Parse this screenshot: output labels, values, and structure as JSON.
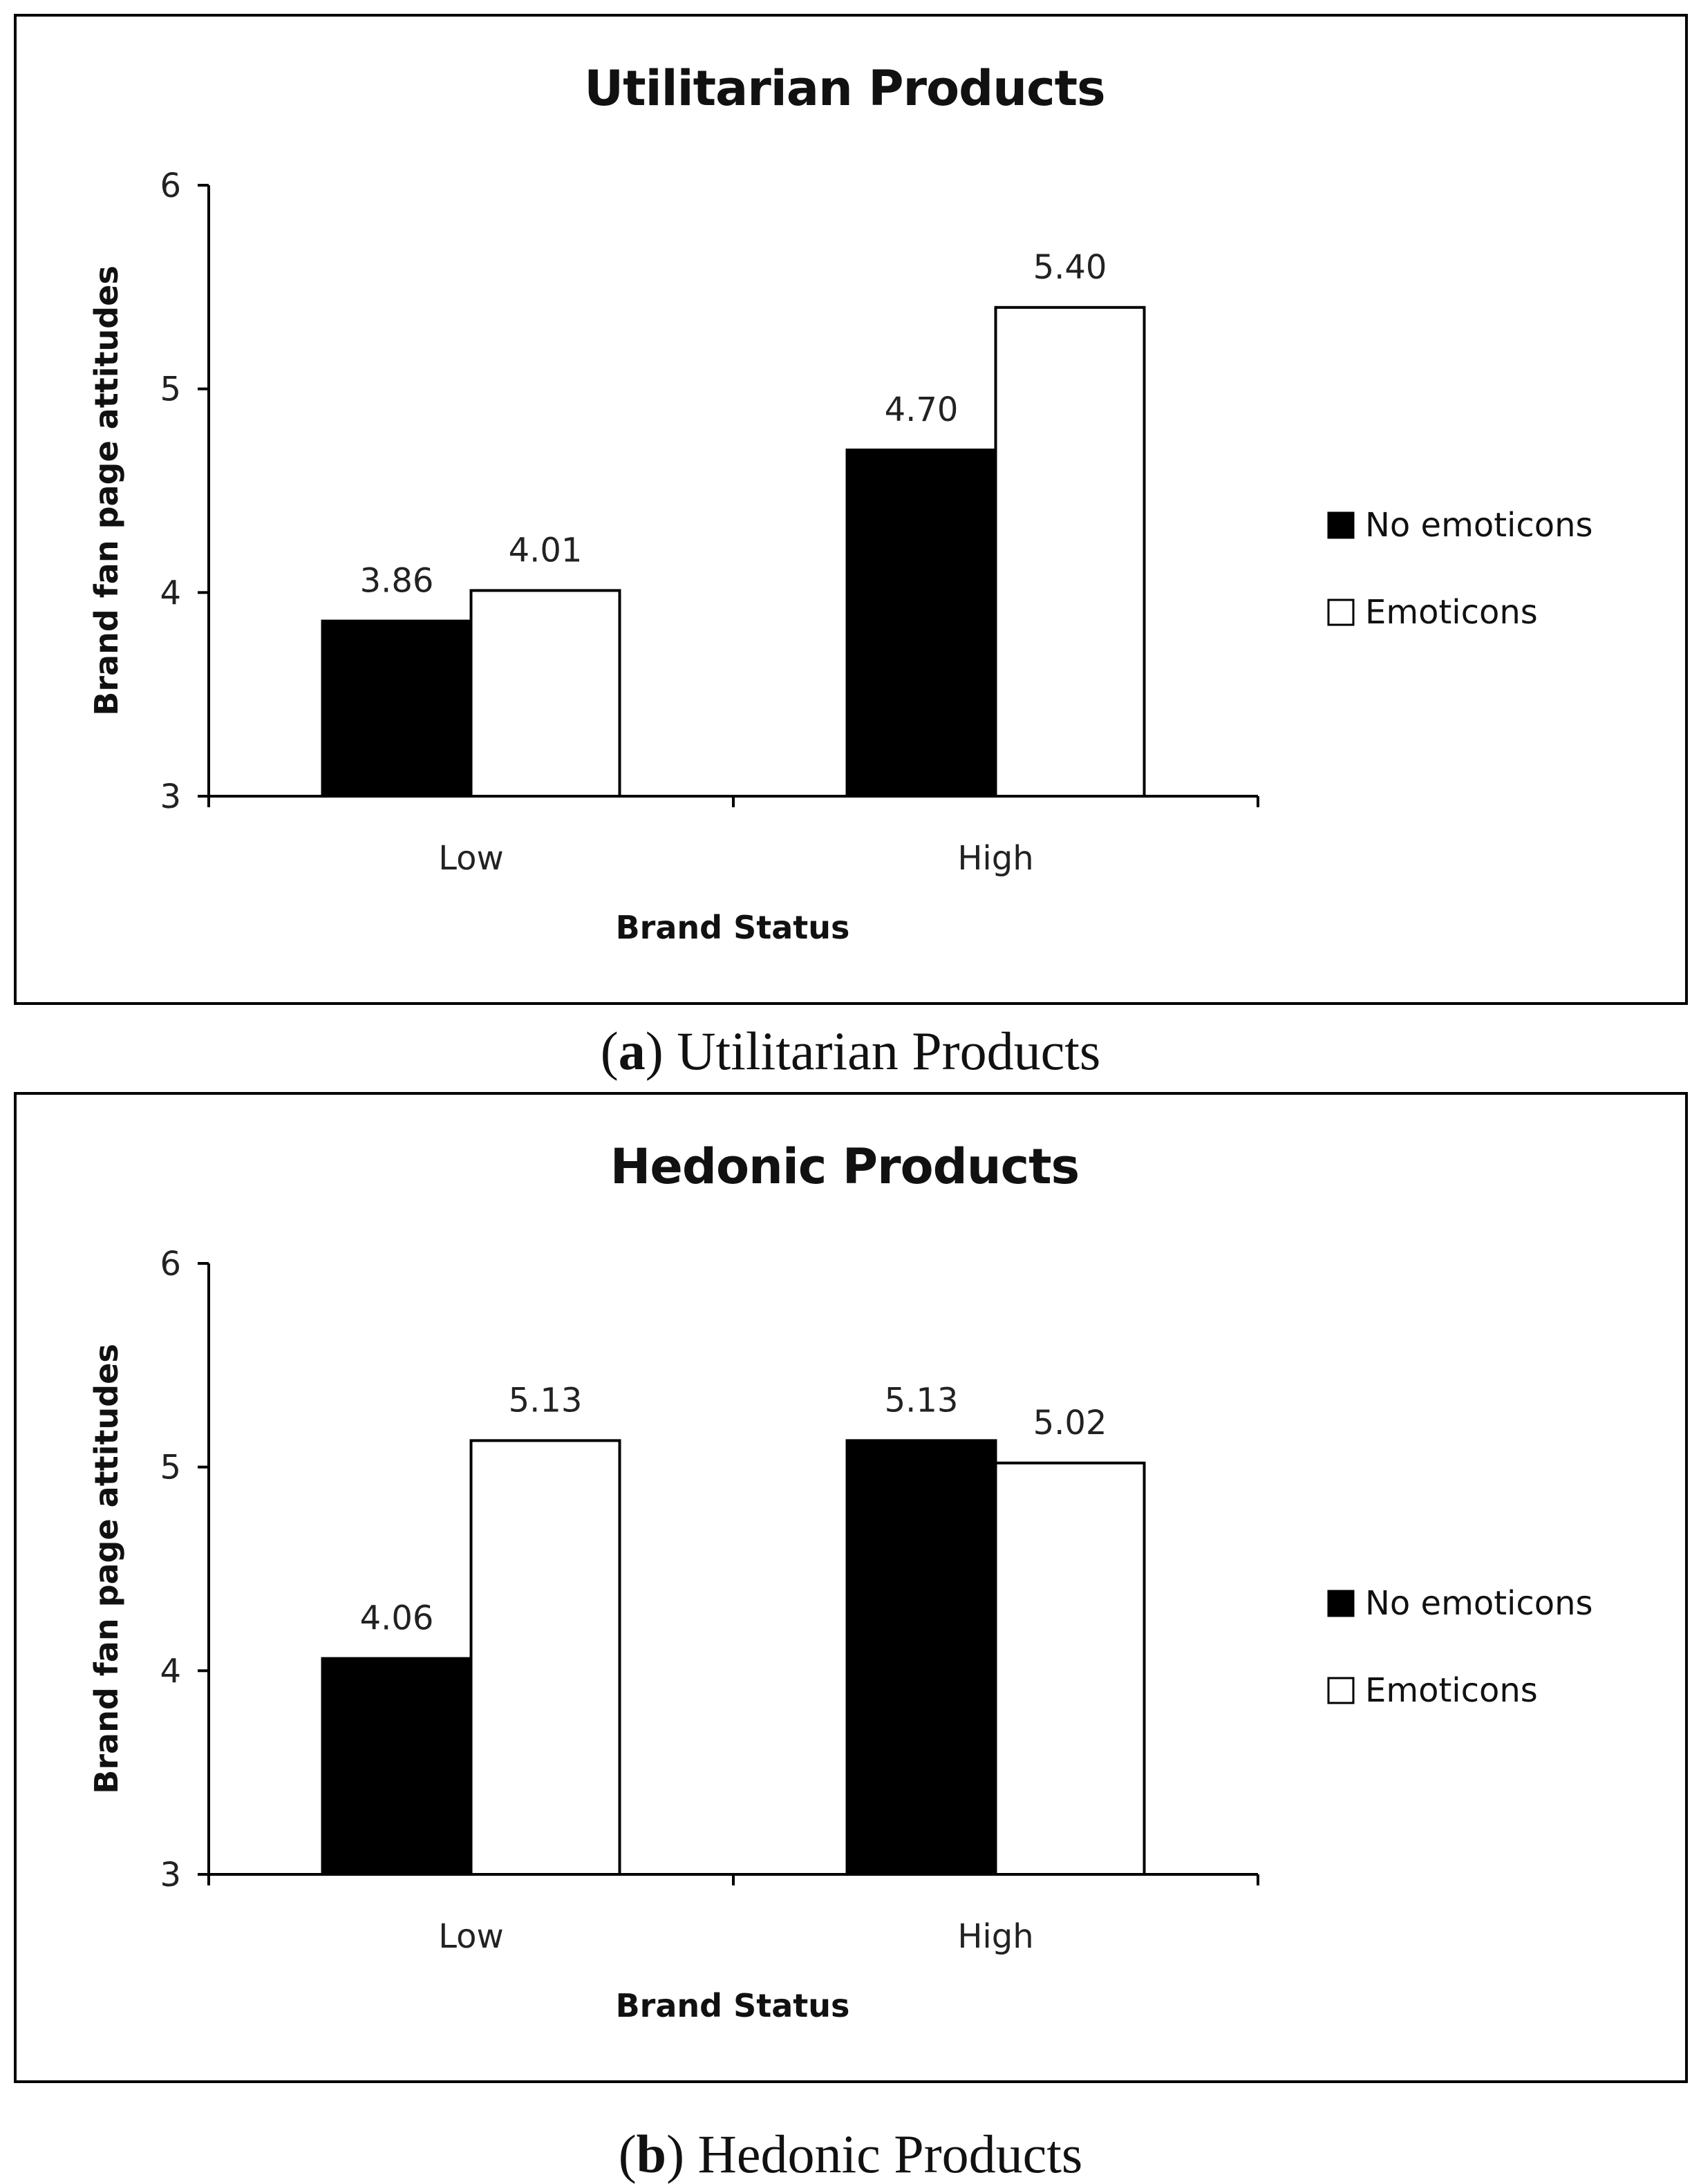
{
  "colors": {
    "no_emoticons": "#000000",
    "emoticons": "#ffffff",
    "frame": "#000000",
    "text": "#111111"
  },
  "chart_data": [
    {
      "type": "bar",
      "title": "Utilitarian Products",
      "xlabel": "Brand Status",
      "ylabel": "Brand fan page attitudes",
      "categories": [
        "Low",
        "High"
      ],
      "series": [
        {
          "name": "No emoticons",
          "values": [
            3.86,
            4.7
          ],
          "labels": [
            "3.86",
            "4.70"
          ],
          "color": "#000000"
        },
        {
          "name": "Emoticons",
          "values": [
            4.01,
            5.4
          ],
          "labels": [
            "4.01",
            "5.40"
          ],
          "color": "#ffffff"
        }
      ],
      "ylim": [
        3,
        6
      ],
      "yticks": [
        "3",
        "4",
        "5",
        "6"
      ],
      "legend_position": "right",
      "caption_letter": "a",
      "caption_text": "Utilitarian Products"
    },
    {
      "type": "bar",
      "title": "Hedonic Products",
      "xlabel": "Brand Status",
      "ylabel": "Brand fan page attitudes",
      "categories": [
        "Low",
        "High"
      ],
      "series": [
        {
          "name": "No emoticons",
          "values": [
            4.06,
            5.13
          ],
          "labels": [
            "4.06",
            "5.13"
          ],
          "color": "#000000"
        },
        {
          "name": "Emoticons",
          "values": [
            5.13,
            5.02
          ],
          "labels": [
            "5.13",
            "5.02"
          ],
          "color": "#ffffff"
        }
      ],
      "ylim": [
        3,
        6
      ],
      "yticks": [
        "3",
        "4",
        "5",
        "6"
      ],
      "legend_position": "right",
      "caption_letter": "b",
      "caption_text": "Hedonic Products"
    }
  ]
}
